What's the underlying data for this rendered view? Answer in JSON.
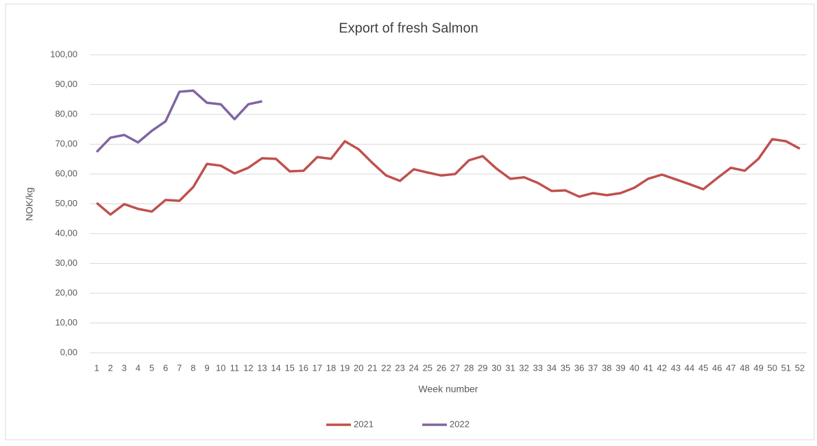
{
  "chart_data": {
    "type": "line",
    "title": "Export of fresh Salmon",
    "x_label": "Week number",
    "y_label": "NOK/kg",
    "categories": [
      "1",
      "2",
      "3",
      "4",
      "5",
      "6",
      "7",
      "8",
      "9",
      "10",
      "11",
      "12",
      "13",
      "14",
      "15",
      "16",
      "17",
      "18",
      "19",
      "20",
      "21",
      "22",
      "23",
      "24",
      "25",
      "26",
      "27",
      "28",
      "29",
      "30",
      "31",
      "32",
      "33",
      "34",
      "35",
      "36",
      "37",
      "38",
      "39",
      "40",
      "41",
      "42",
      "43",
      "44",
      "45",
      "46",
      "47",
      "48",
      "49",
      "50",
      "51",
      "52"
    ],
    "series": [
      {
        "name": "2021",
        "color": "#c0504d",
        "values": [
          50.3,
          46.4,
          49.9,
          48.3,
          47.4,
          51.3,
          51.0,
          55.6,
          63.4,
          62.8,
          60.2,
          62.1,
          65.3,
          65.1,
          60.9,
          61.1,
          65.7,
          65.1,
          71.0,
          68.3,
          63.7,
          59.5,
          57.7,
          61.6,
          60.5,
          59.5,
          60.0,
          64.6,
          66.0,
          61.8,
          58.4,
          58.9,
          57.0,
          54.3,
          54.5,
          52.4,
          53.6,
          52.9,
          53.6,
          55.4,
          58.4,
          59.8,
          58.2,
          56.6,
          54.9,
          58.6,
          62.1,
          61.1,
          65.1,
          71.7,
          71.0,
          68.5
        ]
      },
      {
        "name": "2022",
        "color": "#8064a2",
        "values": [
          67.4,
          72.2,
          73.1,
          70.6,
          74.5,
          77.7,
          87.6,
          88.0,
          83.9,
          83.4,
          78.4,
          83.4,
          84.4,
          null,
          null,
          null,
          null,
          null,
          null,
          null,
          null,
          null,
          null,
          null,
          null,
          null,
          null,
          null,
          null,
          null,
          null,
          null,
          null,
          null,
          null,
          null,
          null,
          null,
          null,
          null,
          null,
          null,
          null,
          null,
          null,
          null,
          null,
          null,
          null,
          null,
          null,
          null
        ]
      }
    ],
    "ylim": [
      0,
      100
    ],
    "yticks": [
      {
        "value": 0,
        "label": "0,00"
      },
      {
        "value": 10,
        "label": "10,00"
      },
      {
        "value": 20,
        "label": "20,00"
      },
      {
        "value": 30,
        "label": "30,00"
      },
      {
        "value": 40,
        "label": "40,00"
      },
      {
        "value": 50,
        "label": "50,00"
      },
      {
        "value": 60,
        "label": "60,00"
      },
      {
        "value": 70,
        "label": "70,00"
      },
      {
        "value": 80,
        "label": "80,00"
      },
      {
        "value": 90,
        "label": "90,00"
      },
      {
        "value": 100,
        "label": "100,00"
      }
    ],
    "grid": true,
    "legend": "bottom"
  }
}
